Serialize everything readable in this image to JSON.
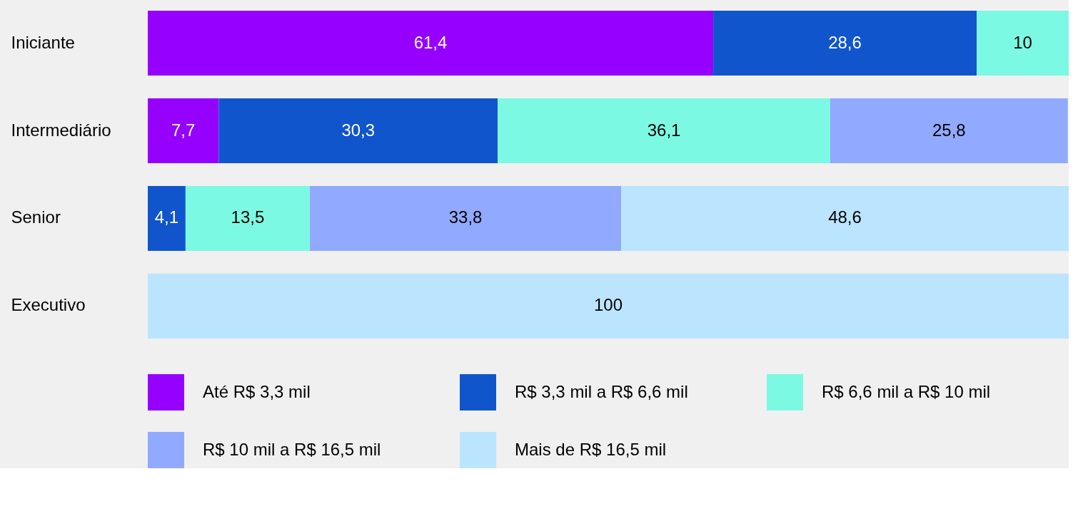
{
  "chart_data": {
    "type": "bar",
    "orientation": "horizontal",
    "stacked": true,
    "legend": "bottom",
    "categories": [
      "Iniciante",
      "Intermediário",
      "Senior",
      "Executivo"
    ],
    "series": [
      {
        "name": "Até R$ 3,3 mil",
        "color": "#9500ff",
        "values": [
          61.4,
          7.7,
          null,
          null
        ],
        "value_labels": [
          "61,4",
          "7,7",
          null,
          null
        ]
      },
      {
        "name": "R$ 3,3 mil a R$ 6,6 mil",
        "color": "#1055cc",
        "values": [
          28.6,
          30.3,
          4.1,
          null
        ],
        "value_labels": [
          "28,6",
          "30,3",
          "4,1",
          null
        ]
      },
      {
        "name": "R$ 6,6 mil a R$ 10 mil",
        "color": "#7cf9e2",
        "values": [
          10,
          36.1,
          13.5,
          null
        ],
        "value_labels": [
          "10",
          "36,1",
          "13,5",
          null
        ]
      },
      {
        "name": "R$ 10 mil a R$ 16,5 mil",
        "color": "#91a9ff",
        "values": [
          null,
          25.8,
          33.8,
          null
        ],
        "value_labels": [
          null,
          "25,8",
          "33,8",
          null
        ]
      },
      {
        "name": "Mais de R$ 16,5 mil",
        "color": "#bbe5ff",
        "values": [
          null,
          null,
          48.6,
          100
        ],
        "value_labels": [
          null,
          null,
          "48,6",
          "100"
        ]
      }
    ]
  }
}
